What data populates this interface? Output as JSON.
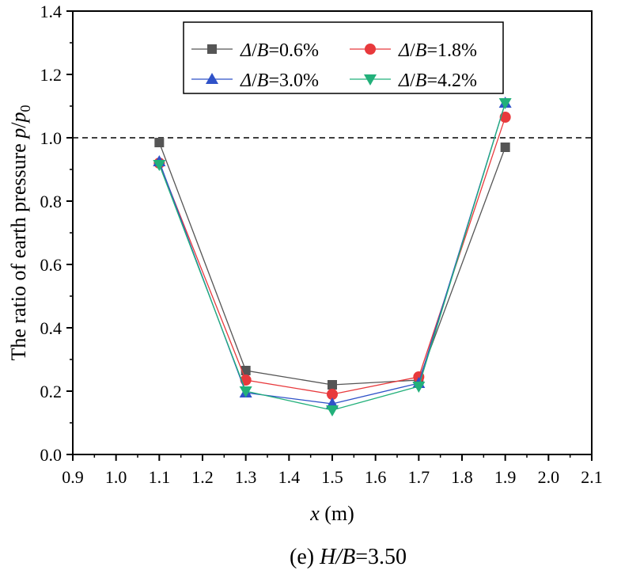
{
  "chart_data": {
    "type": "line",
    "title": "",
    "caption": "(e) H/B=3.50",
    "xlabel": "x (m)",
    "ylabel": "The ratio of earth pressure  p/p0",
    "xlim": [
      0.9,
      2.1
    ],
    "ylim": [
      0.0,
      1.4
    ],
    "xticks": [
      0.9,
      1.0,
      1.1,
      1.2,
      1.3,
      1.4,
      1.5,
      1.6,
      1.7,
      1.8,
      1.9,
      2.0,
      2.1
    ],
    "yticks": [
      0.0,
      0.2,
      0.4,
      0.6,
      0.8,
      1.0,
      1.2,
      1.4
    ],
    "reference_line": {
      "y": 1.0,
      "style": "dashed"
    },
    "grid": false,
    "legend_position": "top",
    "x": [
      1.1,
      1.3,
      1.5,
      1.7,
      1.9
    ],
    "series": [
      {
        "name": "Δ/B=0.6%",
        "values": [
          0.985,
          0.265,
          0.22,
          0.235,
          0.97
        ],
        "color": "#555555",
        "marker": "square"
      },
      {
        "name": "Δ/B=1.8%",
        "values": [
          0.92,
          0.235,
          0.19,
          0.245,
          1.065
        ],
        "color": "#e8393c",
        "marker": "circle"
      },
      {
        "name": "Δ/B=3.0%",
        "values": [
          0.925,
          0.195,
          0.16,
          0.225,
          1.11
        ],
        "color": "#2f52c8",
        "marker": "triangle-up"
      },
      {
        "name": "Δ/B=4.2%",
        "values": [
          0.915,
          0.2,
          0.14,
          0.215,
          1.11
        ],
        "color": "#22b07a",
        "marker": "triangle-down"
      }
    ]
  }
}
